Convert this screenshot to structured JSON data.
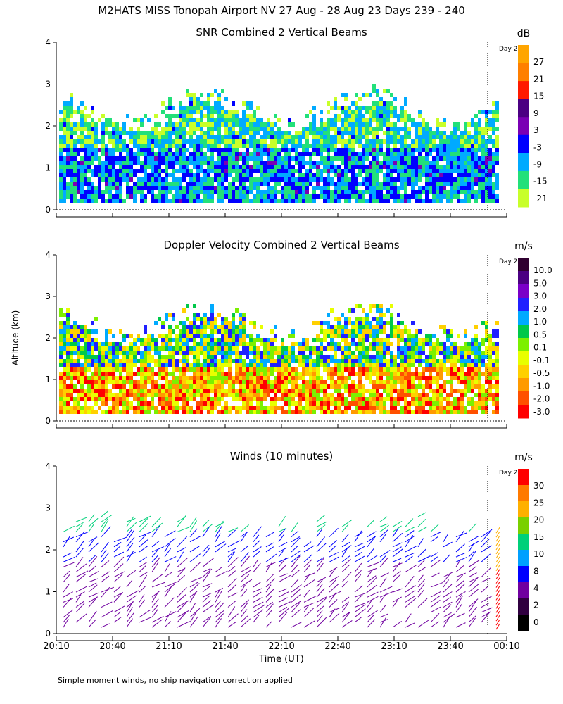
{
  "figure": {
    "title": "M2HATS MISS Tonopah Airport NV  27 Aug - 28 Aug 23 Days 239 - 240",
    "ylabel": "Altitude (km)",
    "xlabel": "Time (UT)",
    "footnote": "Simple moment winds, no ship navigation correction applied",
    "day_marker_label": "Day 2"
  },
  "chart_data": [
    {
      "type": "heatmap",
      "title": "SNR Combined 2 Vertical Beams",
      "units": "dB",
      "ylim": [
        0,
        4
      ],
      "yticks": [
        "0",
        "1",
        "2",
        "3",
        "4"
      ],
      "colorbar_labels": [
        "27",
        "21",
        "15",
        "9",
        "3",
        "-3",
        "-9",
        "-15",
        "-21"
      ],
      "colorbar_colors": [
        "#ffa500",
        "#ff7f00",
        "#ff1a00",
        "#4b0082",
        "#7a00b4",
        "#0000ff",
        "#00aaff",
        "#22e07a",
        "#c8ff2a"
      ]
    },
    {
      "type": "heatmap",
      "title": "Doppler Velocity Combined 2 Vertical Beams",
      "units": "m/s",
      "ylim": [
        0,
        4
      ],
      "yticks": [
        "0",
        "1",
        "2",
        "3",
        "4"
      ],
      "colorbar_labels": [
        "10.0",
        "5.0",
        "3.0",
        "2.0",
        "1.0",
        "0.5",
        "0.1",
        "-0.1",
        "-0.5",
        "-1.0",
        "-2.0",
        "-3.0"
      ],
      "colorbar_colors": [
        "#300030",
        "#4b0082",
        "#7a00c8",
        "#2020ff",
        "#00aaff",
        "#00c84a",
        "#7cf000",
        "#e8ff00",
        "#ffd000",
        "#ff9a00",
        "#ff5000",
        "#ff0000"
      ]
    },
    {
      "type": "scatter",
      "title": "Winds (10 minutes)",
      "units": "m/s",
      "ylim": [
        0,
        4
      ],
      "yticks": [
        "0",
        "1",
        "2",
        "3",
        "4"
      ],
      "colorbar_labels": [
        "30",
        "25",
        "20",
        "15",
        "10",
        "8",
        "4",
        "2",
        "0"
      ],
      "colorbar_colors": [
        "#ff0000",
        "#ff7a00",
        "#ffb000",
        "#7ad000",
        "#00d07a",
        "#00a0ff",
        "#0000ff",
        "#7000a0",
        "#300040",
        "#000000"
      ]
    }
  ],
  "xaxis": {
    "tick_labels": [
      "20:10",
      "20:40",
      "21:10",
      "21:40",
      "22:10",
      "22:40",
      "23:10",
      "23:40",
      "00:10"
    ]
  }
}
